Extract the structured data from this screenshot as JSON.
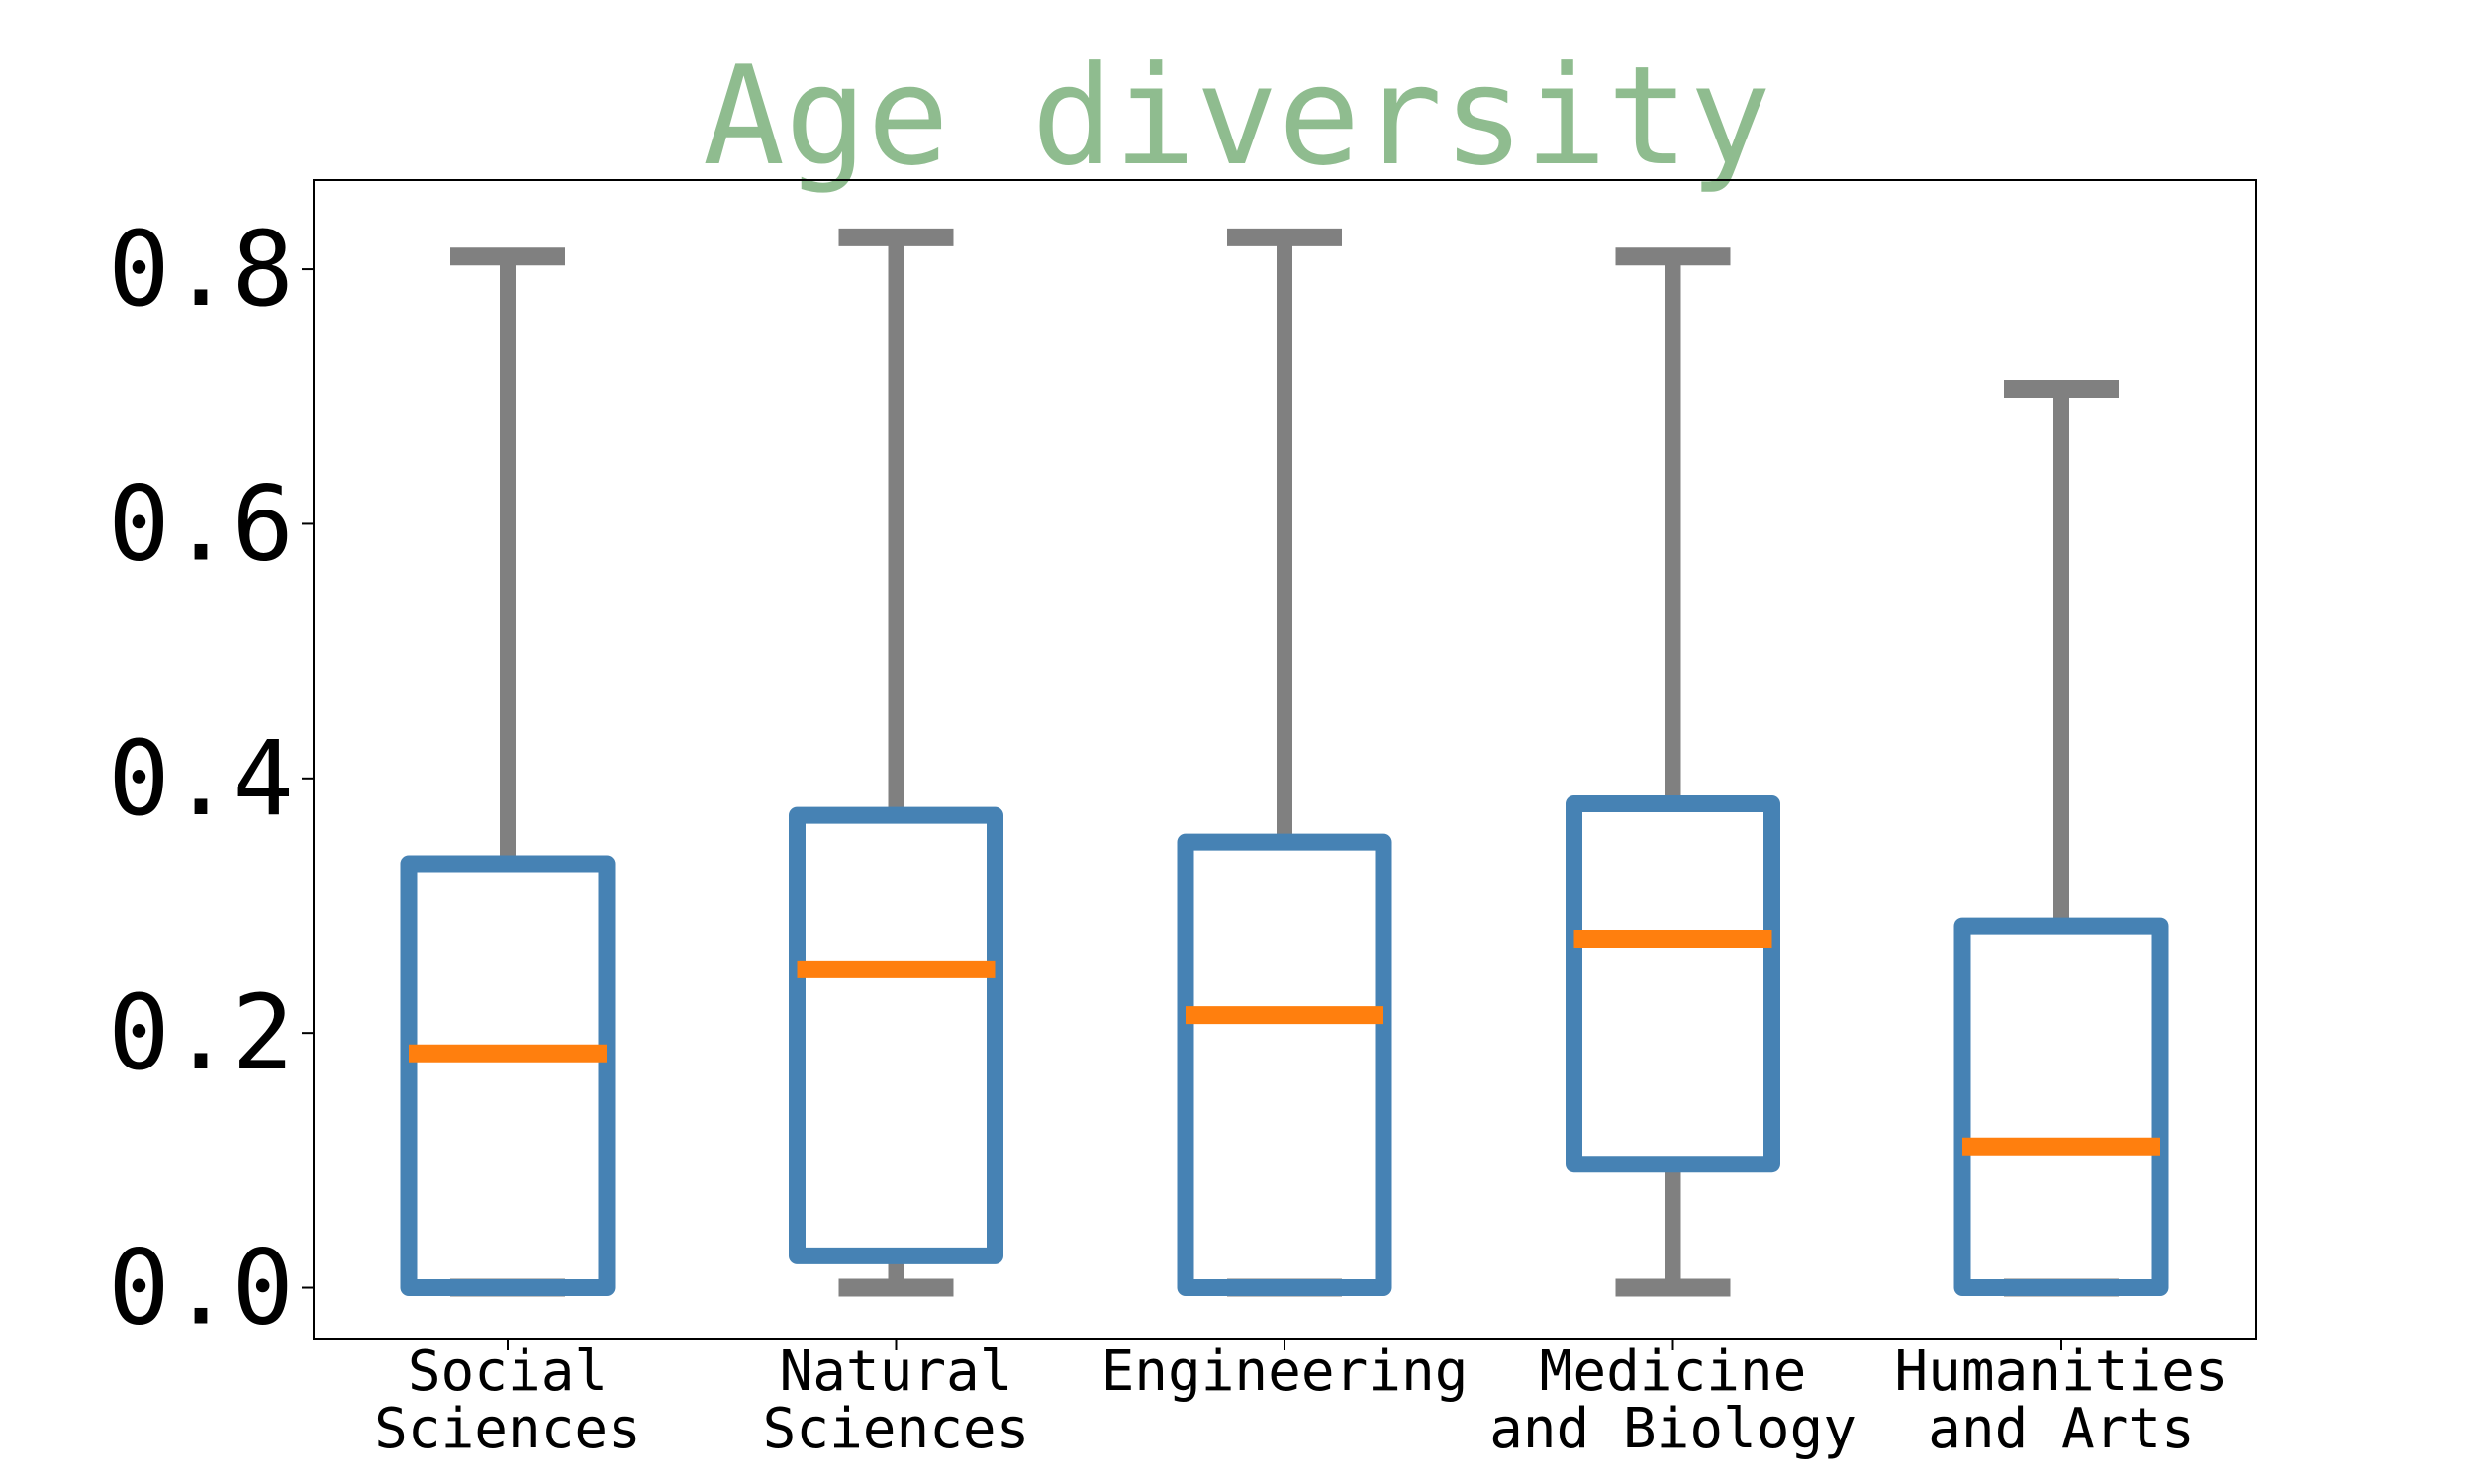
{
  "chart_data": {
    "type": "box",
    "title": "Age diversity",
    "xlabel": "",
    "ylabel": "",
    "ylim": [
      -0.04,
      0.87
    ],
    "yticks": [
      "0.0",
      "0.2",
      "0.4",
      "0.6",
      "0.8"
    ],
    "ytick_values": [
      0.0,
      0.2,
      0.4,
      0.6,
      0.8
    ],
    "grid": false,
    "categories": [
      {
        "label_lines": [
          "Social",
          "Sciences"
        ]
      },
      {
        "label_lines": [
          "Natural",
          "Sciences"
        ]
      },
      {
        "label_lines": [
          "Engineering"
        ]
      },
      {
        "label_lines": [
          "Medicine",
          "and Biology"
        ]
      },
      {
        "label_lines": [
          "Humanities",
          "and Arts"
        ]
      }
    ],
    "boxes": [
      {
        "whisker_low": 0.0,
        "q1": 0.0,
        "median": 0.184,
        "q3": 0.333,
        "whisker_high": 0.81
      },
      {
        "whisker_low": 0.0,
        "q1": 0.025,
        "median": 0.25,
        "q3": 0.371,
        "whisker_high": 0.825
      },
      {
        "whisker_low": 0.0,
        "q1": 0.0,
        "median": 0.214,
        "q3": 0.35,
        "whisker_high": 0.825
      },
      {
        "whisker_low": 0.0,
        "q1": 0.097,
        "median": 0.274,
        "q3": 0.38,
        "whisker_high": 0.81
      },
      {
        "whisker_low": 0.0,
        "q1": 0.0,
        "median": 0.111,
        "q3": 0.284,
        "whisker_high": 0.706
      }
    ],
    "colors": {
      "title": "#8fbc8f",
      "box": "#4682b4",
      "median": "#ff7f0e",
      "whisker": "#808080",
      "frame": "#000000"
    }
  }
}
